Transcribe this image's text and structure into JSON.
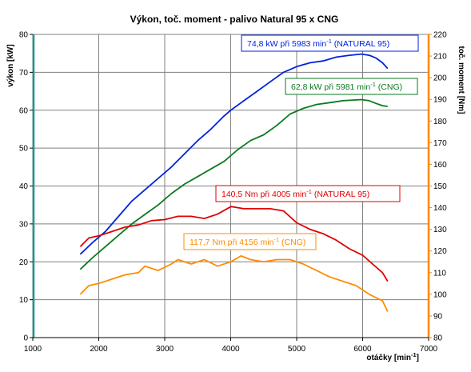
{
  "chart_data": {
    "type": "line",
    "title": "Výkon, toč. moment - palivo Natural 95 x CNG",
    "xlabel": {
      "text": "otáčky [min",
      "sup": "-1",
      "suffix": "]"
    },
    "ylabel_left": "výkon [kW]",
    "ylabel_right": "toč. moment [Nm]",
    "xlim": [
      1000,
      7000
    ],
    "ylim_left": [
      0,
      80
    ],
    "ylim_right": [
      80,
      220
    ],
    "x_ticks": [
      "1000",
      "2000",
      "3000",
      "4000",
      "5000",
      "6000",
      "7000"
    ],
    "y_left_ticks": [
      "0",
      "10",
      "20",
      "30",
      "40",
      "50",
      "60",
      "70",
      "80"
    ],
    "y_right_ticks": [
      "80",
      "90",
      "100",
      "110",
      "120",
      "130",
      "140",
      "150",
      "160",
      "170",
      "180",
      "190",
      "200",
      "210",
      "220"
    ],
    "grid": true,
    "colors": {
      "left_axis": "#1a9a8a",
      "right_axis": "#ff8800",
      "grid": "#808080"
    },
    "series": [
      {
        "axis": "left",
        "color": "#0022e0",
        "x": [
          1720,
          1900,
          2100,
          2300,
          2500,
          2700,
          2900,
          3100,
          3300,
          3500,
          3700,
          3900,
          4000,
          4200,
          4400,
          4600,
          4800,
          5000,
          5200,
          5400,
          5600,
          5800,
          5983,
          6100,
          6200,
          6300,
          6380
        ],
        "y": [
          22,
          25,
          28,
          32,
          36,
          39,
          42,
          45,
          48.5,
          52,
          55,
          58.5,
          60,
          62.5,
          65,
          67.5,
          70,
          71.5,
          72.5,
          73,
          74,
          74.5,
          74.8,
          74.5,
          73.8,
          72.5,
          71
        ]
      },
      {
        "axis": "left",
        "color": "#0a7a1e",
        "x": [
          1720,
          1900,
          2100,
          2300,
          2500,
          2700,
          2900,
          3100,
          3300,
          3500,
          3700,
          3900,
          4100,
          4300,
          4500,
          4700,
          4900,
          5100,
          5300,
          5500,
          5700,
          5981,
          6100,
          6200,
          6300,
          6380
        ],
        "y": [
          18,
          21,
          24,
          27,
          30,
          32.5,
          35,
          38,
          40.5,
          42.5,
          44.5,
          46.5,
          49.5,
          52,
          53.5,
          56,
          59,
          60.5,
          61.5,
          62,
          62.5,
          62.8,
          62.5,
          61.8,
          61.2,
          61
        ]
      },
      {
        "axis": "right",
        "color": "#e00000",
        "x": [
          1720,
          1850,
          2000,
          2200,
          2400,
          2600,
          2800,
          3000,
          3200,
          3400,
          3600,
          3800,
          4005,
          4200,
          4400,
          4600,
          4800,
          5000,
          5200,
          5400,
          5600,
          5800,
          6000,
          6150,
          6300,
          6380
        ],
        "y": [
          122,
          126,
          127,
          129,
          131,
          132,
          134,
          134.5,
          136,
          136,
          135,
          137,
          140.5,
          139.5,
          139.5,
          139.5,
          138.5,
          133,
          130,
          128,
          125,
          121,
          118,
          114,
          110,
          106
        ]
      },
      {
        "axis": "right",
        "color": "#ff8c00",
        "x": [
          1720,
          1850,
          2000,
          2200,
          2400,
          2600,
          2700,
          2900,
          3100,
          3200,
          3400,
          3600,
          3800,
          4000,
          4156,
          4300,
          4500,
          4700,
          4900,
          5100,
          5300,
          5500,
          5700,
          5900,
          6100,
          6300,
          6380
        ],
        "y": [
          100,
          104,
          105,
          107,
          109,
          110,
          113,
          111,
          114,
          116,
          114,
          116,
          113,
          115,
          117.7,
          116,
          115,
          116,
          116,
          114,
          111,
          108,
          106,
          104,
          100,
          97,
          92
        ]
      }
    ],
    "annotations": [
      {
        "main": "74,8 kW při 5983 min",
        "sup": "-1",
        "tail": " (NATURAL 95)",
        "color": "#0022e0"
      },
      {
        "main": "62,8 kW při 5981 min",
        "sup": "-1",
        "tail": " (CNG)",
        "color": "#0a7a1e"
      },
      {
        "main": "140,5 Nm při 4005 min",
        "sup": "-1",
        "tail": " (NATURAL 95)",
        "color": "#e00000"
      },
      {
        "main": "117,7 Nm při 4156 min",
        "sup": "-1",
        "tail": " (CNG)",
        "color": "#ff8c00"
      }
    ]
  }
}
